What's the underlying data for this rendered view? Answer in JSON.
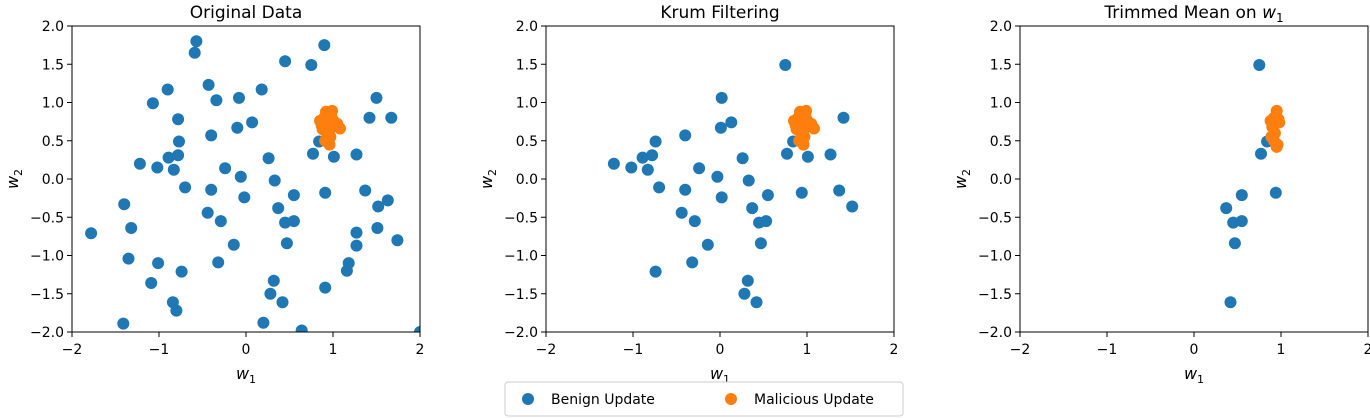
{
  "colors": {
    "benign": "#1f77b4",
    "malicious": "#ff7f0e"
  },
  "legend": {
    "benign_label": "Benign Update",
    "malicious_label": "Malicious Update"
  },
  "chart_data": [
    {
      "type": "scatter",
      "title": "Original Data",
      "xlabel_base": "w",
      "xlabel_sub": "1",
      "ylabel_base": "w",
      "ylabel_sub": "2",
      "xlim": [
        -2,
        2
      ],
      "ylim": [
        -2,
        2
      ],
      "xticks": [
        -2,
        -1,
        0,
        1,
        2
      ],
      "yticks": [
        -2.0,
        -1.5,
        -1.0,
        -0.5,
        0.0,
        0.5,
        1.0,
        1.5,
        2.0
      ],
      "series": [
        {
          "name": "Benign Update",
          "points": [
            [
              -0.57,
              1.8
            ],
            [
              -0.59,
              1.65
            ],
            [
              -0.08,
              1.06
            ],
            [
              0.45,
              1.54
            ],
            [
              0.9,
              1.75
            ],
            [
              0.75,
              1.49
            ],
            [
              -0.9,
              1.17
            ],
            [
              -1.07,
              0.99
            ],
            [
              -0.78,
              0.78
            ],
            [
              -0.43,
              1.23
            ],
            [
              -0.34,
              1.03
            ],
            [
              0.18,
              1.17
            ],
            [
              0.07,
              0.74
            ],
            [
              -0.1,
              0.67
            ],
            [
              -0.77,
              0.49
            ],
            [
              -0.4,
              0.57
            ],
            [
              -1.22,
              0.2
            ],
            [
              -1.02,
              0.15
            ],
            [
              -0.89,
              0.28
            ],
            [
              -0.78,
              0.31
            ],
            [
              -0.83,
              0.12
            ],
            [
              -0.24,
              0.14
            ],
            [
              0.26,
              0.27
            ],
            [
              0.77,
              0.33
            ],
            [
              1.01,
              0.29
            ],
            [
              1.27,
              0.32
            ],
            [
              1.42,
              0.8
            ],
            [
              1.5,
              1.06
            ],
            [
              1.67,
              0.8
            ],
            [
              0.84,
              0.49
            ],
            [
              -0.7,
              -0.11
            ],
            [
              -0.4,
              -0.14
            ],
            [
              -0.06,
              0.03
            ],
            [
              0.33,
              -0.02
            ],
            [
              -0.02,
              -0.24
            ],
            [
              0.37,
              -0.38
            ],
            [
              0.45,
              -0.57
            ],
            [
              0.55,
              -0.21
            ],
            [
              0.91,
              -0.18
            ],
            [
              1.37,
              -0.15
            ],
            [
              1.52,
              -0.36
            ],
            [
              1.63,
              -0.28
            ],
            [
              -0.44,
              -0.44
            ],
            [
              -0.29,
              -0.55
            ],
            [
              -1.4,
              -0.33
            ],
            [
              -1.78,
              -0.71
            ],
            [
              -1.32,
              -0.64
            ],
            [
              -0.14,
              -0.86
            ],
            [
              0.47,
              -0.84
            ],
            [
              1.51,
              -0.64
            ],
            [
              1.74,
              -0.8
            ],
            [
              1.27,
              -0.7
            ],
            [
              1.27,
              -0.87
            ],
            [
              1.18,
              -1.1
            ],
            [
              1.16,
              -1.2
            ],
            [
              -1.35,
              -1.04
            ],
            [
              -1.01,
              -1.1
            ],
            [
              -0.74,
              -1.21
            ],
            [
              -0.32,
              -1.09
            ],
            [
              -1.09,
              -1.36
            ],
            [
              0.32,
              -1.33
            ],
            [
              0.28,
              -1.5
            ],
            [
              0.42,
              -1.61
            ],
            [
              0.91,
              -1.42
            ],
            [
              -0.84,
              -1.61
            ],
            [
              -0.8,
              -1.72
            ],
            [
              -1.41,
              -1.89
            ],
            [
              0.2,
              -1.88
            ],
            [
              0.64,
              -1.98
            ],
            [
              2.0,
              -2.0
            ],
            [
              0.55,
              -0.55
            ]
          ]
        },
        {
          "name": "Malicious Update",
          "points": [
            [
              0.85,
              0.76
            ],
            [
              0.9,
              0.8
            ],
            [
              0.95,
              0.86
            ],
            [
              0.98,
              0.82
            ],
            [
              1.0,
              0.77
            ],
            [
              0.94,
              0.72
            ],
            [
              1.03,
              0.7
            ],
            [
              0.88,
              0.65
            ],
            [
              0.93,
              0.6
            ],
            [
              0.97,
              0.55
            ],
            [
              0.91,
              0.5
            ],
            [
              0.96,
              0.45
            ],
            [
              1.08,
              0.66
            ],
            [
              0.92,
              0.88
            ],
            [
              0.99,
              0.89
            ],
            [
              0.87,
              0.7
            ],
            [
              1.05,
              0.72
            ],
            [
              0.97,
              0.66
            ]
          ]
        }
      ]
    },
    {
      "type": "scatter",
      "title": "Krum Filtering",
      "xlabel_base": "w",
      "xlabel_sub": "1",
      "ylabel_base": "w",
      "ylabel_sub": "2",
      "xlim": [
        -2,
        2
      ],
      "ylim": [
        -2,
        2
      ],
      "xticks": [
        -2,
        -1,
        0,
        1,
        2
      ],
      "yticks": [
        -2.0,
        -1.5,
        -1.0,
        -0.5,
        0.0,
        0.5,
        1.0,
        1.5,
        2.0
      ],
      "series": [
        {
          "name": "Benign Update",
          "points": [
            [
              0.75,
              1.49
            ],
            [
              0.02,
              1.06
            ],
            [
              0.13,
              0.74
            ],
            [
              0.01,
              0.67
            ],
            [
              -0.74,
              0.49
            ],
            [
              -0.4,
              0.57
            ],
            [
              -1.22,
              0.2
            ],
            [
              -1.02,
              0.15
            ],
            [
              -0.89,
              0.28
            ],
            [
              -0.78,
              0.31
            ],
            [
              -0.83,
              0.12
            ],
            [
              -0.24,
              0.14
            ],
            [
              0.26,
              0.27
            ],
            [
              0.77,
              0.33
            ],
            [
              1.01,
              0.29
            ],
            [
              1.27,
              0.32
            ],
            [
              1.42,
              0.8
            ],
            [
              0.84,
              0.49
            ],
            [
              -0.7,
              -0.11
            ],
            [
              -0.4,
              -0.14
            ],
            [
              -0.03,
              0.03
            ],
            [
              0.33,
              -0.02
            ],
            [
              0.02,
              -0.24
            ],
            [
              0.37,
              -0.38
            ],
            [
              0.45,
              -0.57
            ],
            [
              0.55,
              -0.21
            ],
            [
              0.94,
              -0.18
            ],
            [
              1.37,
              -0.15
            ],
            [
              1.52,
              -0.36
            ],
            [
              -0.44,
              -0.44
            ],
            [
              -0.29,
              -0.55
            ],
            [
              -0.14,
              -0.86
            ],
            [
              0.47,
              -0.84
            ],
            [
              -0.74,
              -1.21
            ],
            [
              -0.32,
              -1.09
            ],
            [
              0.32,
              -1.33
            ],
            [
              0.28,
              -1.5
            ],
            [
              0.42,
              -1.61
            ],
            [
              0.53,
              -0.55
            ]
          ]
        },
        {
          "name": "Malicious Update",
          "points": [
            [
              0.85,
              0.76
            ],
            [
              0.9,
              0.8
            ],
            [
              0.95,
              0.86
            ],
            [
              0.98,
              0.82
            ],
            [
              1.0,
              0.77
            ],
            [
              0.94,
              0.72
            ],
            [
              1.03,
              0.7
            ],
            [
              0.88,
              0.65
            ],
            [
              0.93,
              0.6
            ],
            [
              0.97,
              0.55
            ],
            [
              0.91,
              0.5
            ],
            [
              0.96,
              0.45
            ],
            [
              1.08,
              0.66
            ],
            [
              0.92,
              0.88
            ],
            [
              0.99,
              0.89
            ],
            [
              0.87,
              0.7
            ],
            [
              1.05,
              0.72
            ],
            [
              0.97,
              0.66
            ]
          ]
        }
      ]
    },
    {
      "type": "scatter",
      "title_base": "Trimmed Mean on ",
      "title_var": "w",
      "title_sub": "1",
      "xlabel_base": "w",
      "xlabel_sub": "1",
      "ylabel_base": "w",
      "ylabel_sub": "2",
      "xlim": [
        -2,
        2
      ],
      "ylim": [
        -2,
        2
      ],
      "xticks": [
        -2,
        -1,
        0,
        1,
        2
      ],
      "yticks": [
        -2.0,
        -1.5,
        -1.0,
        -0.5,
        0.0,
        0.5,
        1.0,
        1.5,
        2.0
      ],
      "series": [
        {
          "name": "Benign Update",
          "points": [
            [
              0.75,
              1.49
            ],
            [
              0.77,
              0.33
            ],
            [
              0.84,
              0.49
            ],
            [
              0.55,
              -0.21
            ],
            [
              0.94,
              -0.18
            ],
            [
              0.37,
              -0.38
            ],
            [
              0.45,
              -0.57
            ],
            [
              0.55,
              -0.55
            ],
            [
              0.47,
              -0.84
            ],
            [
              0.42,
              -1.61
            ]
          ]
        },
        {
          "name": "Malicious Update",
          "points": [
            [
              0.88,
              0.76
            ],
            [
              0.92,
              0.8
            ],
            [
              0.95,
              0.89
            ],
            [
              0.97,
              0.78
            ],
            [
              0.98,
              0.74
            ],
            [
              0.9,
              0.68
            ],
            [
              0.93,
              0.6
            ],
            [
              0.89,
              0.55
            ],
            [
              0.92,
              0.5
            ],
            [
              0.96,
              0.45
            ],
            [
              0.95,
              0.42
            ]
          ]
        }
      ]
    }
  ]
}
